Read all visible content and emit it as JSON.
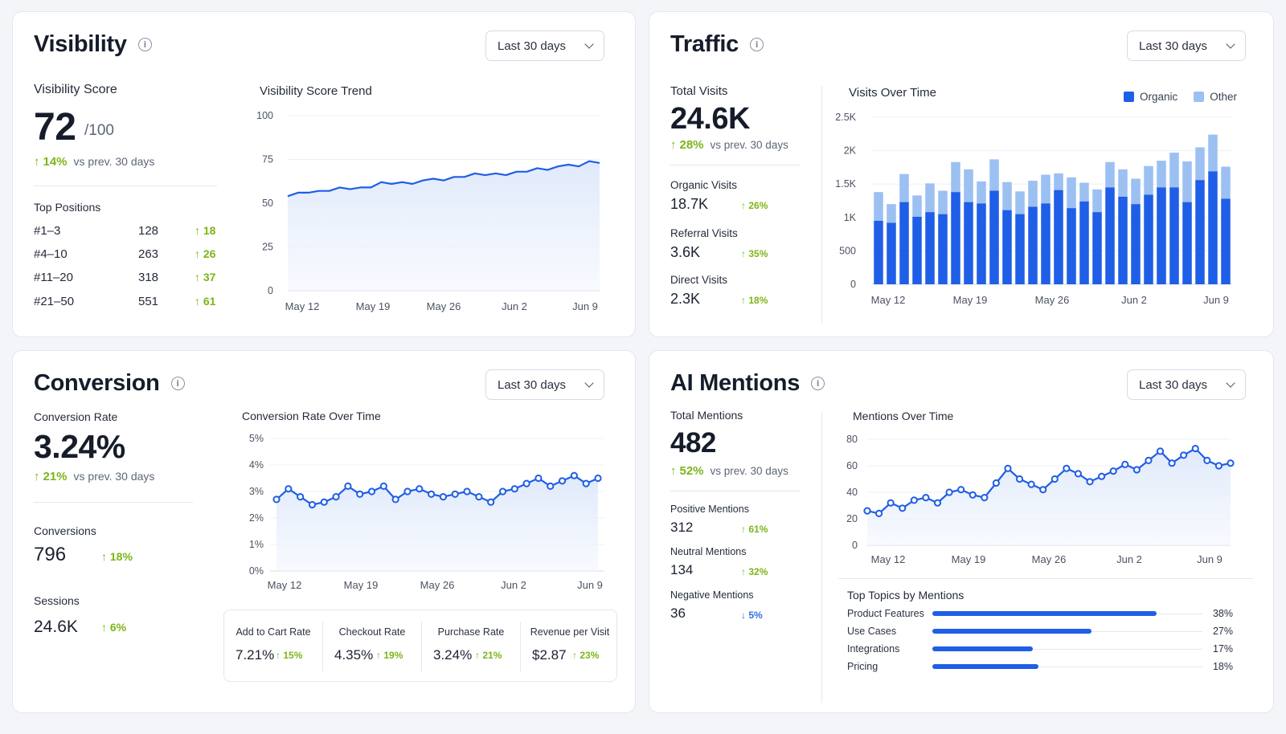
{
  "colors": {
    "accent": "#1f5ee6",
    "accent_light": "#9cc0f2",
    "up": "#7cb518",
    "down": "#2f6fe0"
  },
  "visibility": {
    "title": "Visibility",
    "range": "Last 30 days",
    "score_label": "Visibility Score",
    "score": "72",
    "score_max": "/100",
    "delta": "14%",
    "delta_suffix": "vs prev. 30 days",
    "positions_title": "Top Positions",
    "positions": [
      {
        "label": "#1–3",
        "value": "128",
        "delta": "18"
      },
      {
        "label": "#4–10",
        "value": "263",
        "delta": "26"
      },
      {
        "label": "#11–20",
        "value": "318",
        "delta": "37"
      },
      {
        "label": "#21–50",
        "value": "551",
        "delta": "61"
      }
    ],
    "chart_title": "Visibility Score Trend"
  },
  "traffic": {
    "title": "Traffic",
    "range": "Last 30 days",
    "total_label": "Total Visits",
    "total": "24.6K",
    "delta": "28%",
    "delta_suffix": "vs prev. 30 days",
    "metrics": [
      {
        "label": "Organic Visits",
        "value": "18.7K",
        "delta": "26%"
      },
      {
        "label": "Referral Visits",
        "value": "3.6K",
        "delta": "35%"
      },
      {
        "label": "Direct Visits",
        "value": "2.3K",
        "delta": "18%"
      }
    ],
    "chart_title": "Visits Over Time"
  },
  "conversion": {
    "title": "Conversion",
    "range": "Last 30 days",
    "rate_label": "Conversion Rate",
    "rate": "3.24%",
    "delta": "21%",
    "delta_suffix": "vs prev. 30 days",
    "conversions_label": "Conversions",
    "conversions": "796",
    "conversions_delta": "18%",
    "sessions_label": "Sessions",
    "sessions": "24.6K",
    "sessions_delta": "6%",
    "chart_title": "Conversion Rate Over Time",
    "subs": [
      {
        "label": "Add to Cart Rate",
        "value": "7.21%",
        "delta": "15%"
      },
      {
        "label": "Checkout Rate",
        "value": "4.35%",
        "delta": "19%"
      },
      {
        "label": "Purchase Rate",
        "value": "3.24%",
        "delta": "21%"
      },
      {
        "label": "Revenue per Visit",
        "value": "$2.87",
        "delta": "23%"
      }
    ]
  },
  "ai": {
    "title": "AI Mentions",
    "range": "Last 30 days",
    "total_label": "Total Mentions",
    "total": "482",
    "delta": "52%",
    "delta_suffix": "vs prev. 30 days",
    "metrics": [
      {
        "label": "Positive Mentions",
        "value": "312",
        "delta": "61%",
        "dir": "up"
      },
      {
        "label": "Neutral Mentions",
        "value": "134",
        "delta": "32%",
        "dir": "up"
      },
      {
        "label": "Negative Mentions",
        "value": "36",
        "delta": "5%",
        "dir": "down"
      }
    ],
    "chart_title": "Mentions Over Time",
    "topics_title": "Top Topics by Mentions",
    "topics": [
      {
        "label": "Product Features",
        "pct": "38%",
        "value": 38
      },
      {
        "label": "Use Cases",
        "pct": "27%",
        "value": 27
      },
      {
        "label": "Integrations",
        "pct": "17%",
        "value": 17
      },
      {
        "label": "Pricing",
        "pct": "18%",
        "value": 18
      }
    ]
  },
  "chart_data": [
    {
      "id": "visibility",
      "type": "area",
      "title": "Visibility Score Trend",
      "x_ticks": [
        "May 12",
        "May 19",
        "May 26",
        "Jun 2",
        "Jun 9"
      ],
      "ylim": [
        0,
        100
      ],
      "y_ticks": [
        "0",
        "25",
        "50",
        "75",
        "100"
      ],
      "values": [
        54,
        56,
        56,
        57,
        57,
        59,
        58,
        59,
        59,
        62,
        61,
        62,
        61,
        63,
        64,
        63,
        65,
        65,
        67,
        66,
        67,
        66,
        68,
        68,
        70,
        69,
        71,
        72,
        71,
        74,
        73
      ]
    },
    {
      "id": "traffic",
      "type": "bar",
      "stacked": true,
      "title": "Visits Over Time",
      "x_ticks": [
        "May 12",
        "May 19",
        "May 26",
        "Jun 2",
        "Jun 9"
      ],
      "ylim": [
        0,
        2500
      ],
      "y_ticks": [
        "0",
        "500",
        "1K",
        "1.5K",
        "2K",
        "2.5K"
      ],
      "legend": [
        "Organic",
        "Other"
      ],
      "legend_position": "top-right",
      "series": [
        {
          "name": "Organic",
          "values": [
            950,
            920,
            1230,
            1010,
            1080,
            1050,
            1380,
            1230,
            1210,
            1400,
            1110,
            1050,
            1160,
            1210,
            1410,
            1140,
            1240,
            1080,
            1450,
            1310,
            1200,
            1340,
            1450,
            1450,
            1230,
            1560,
            1690,
            1280
          ]
        },
        {
          "name": "Other",
          "values": [
            430,
            280,
            420,
            320,
            430,
            350,
            450,
            490,
            330,
            470,
            420,
            340,
            390,
            430,
            250,
            460,
            280,
            340,
            380,
            410,
            380,
            430,
            400,
            520,
            610,
            490,
            550,
            480
          ]
        }
      ]
    },
    {
      "id": "conversion",
      "type": "line",
      "title": "Conversion Rate Over Time",
      "x_ticks": [
        "May 12",
        "May 19",
        "May 26",
        "Jun 2",
        "Jun 9"
      ],
      "ylim": [
        0,
        5
      ],
      "y_ticks": [
        "0%",
        "1%",
        "2%",
        "3%",
        "4%",
        "5%"
      ],
      "values": [
        2.7,
        3.1,
        2.8,
        2.5,
        2.6,
        2.8,
        3.2,
        2.9,
        3.0,
        3.2,
        2.7,
        3.0,
        3.1,
        2.9,
        2.8,
        2.9,
        3.0,
        2.8,
        2.6,
        3.0,
        3.1,
        3.3,
        3.5,
        3.2,
        3.4,
        3.6,
        3.3,
        3.5
      ]
    },
    {
      "id": "mentions",
      "type": "line",
      "title": "Mentions Over Time",
      "x_ticks": [
        "May 12",
        "May 19",
        "May 26",
        "Jun 2",
        "Jun 9"
      ],
      "ylim": [
        0,
        80
      ],
      "y_ticks": [
        "0",
        "20",
        "40",
        "60",
        "80"
      ],
      "values": [
        26,
        24,
        32,
        28,
        34,
        36,
        32,
        40,
        42,
        38,
        36,
        47,
        58,
        50,
        46,
        42,
        50,
        58,
        54,
        48,
        52,
        56,
        61,
        57,
        64,
        71,
        62,
        68,
        73,
        64,
        60,
        62
      ]
    }
  ]
}
